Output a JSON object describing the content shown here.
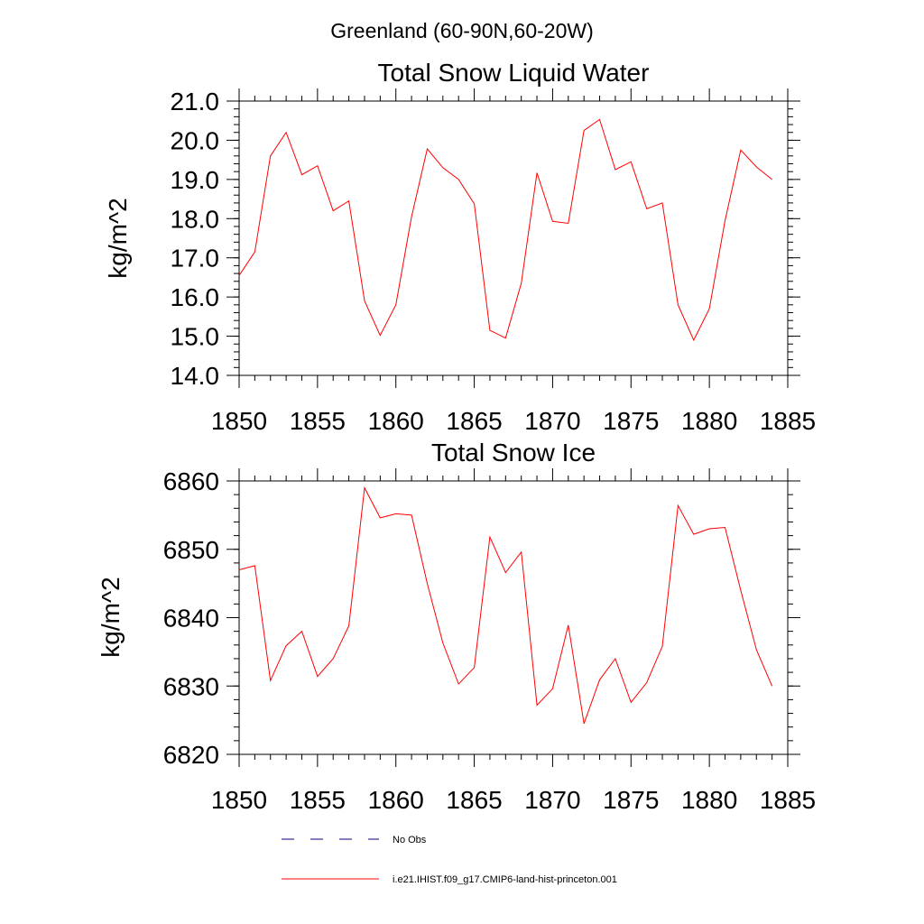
{
  "page_title": "Greenland (60-90N,60-20W)",
  "chart_data": [
    {
      "type": "line",
      "title": "Total Snow Liquid Water",
      "xlabel": "",
      "ylabel": "kg/m^2",
      "xlim": [
        1850,
        1885
      ],
      "ylim": [
        14.0,
        21.0
      ],
      "x_ticks": [
        1850,
        1855,
        1860,
        1865,
        1870,
        1875,
        1880,
        1885
      ],
      "x_tick_labels": [
        "1850",
        "1855",
        "1860",
        "1865",
        "1870",
        "1875",
        "1880",
        "1885"
      ],
      "y_ticks": [
        14.0,
        15.0,
        16.0,
        17.0,
        18.0,
        19.0,
        20.0,
        21.0
      ],
      "y_tick_labels": [
        "14.0",
        "15.0",
        "16.0",
        "17.0",
        "18.0",
        "19.0",
        "20.0",
        "21.0"
      ],
      "x": [
        1850,
        1851,
        1852,
        1853,
        1854,
        1855,
        1856,
        1857,
        1858,
        1859,
        1860,
        1861,
        1862,
        1863,
        1864,
        1865,
        1866,
        1867,
        1868,
        1869,
        1870,
        1871,
        1872,
        1873,
        1874,
        1875,
        1876,
        1877,
        1878,
        1879,
        1880,
        1881,
        1882,
        1883,
        1884
      ],
      "series": [
        {
          "name": "i.e21.IHIST.f09_g17.CMIP6-land-hist-princeton.001",
          "color": "#ff0000",
          "values": [
            16.55,
            17.15,
            19.6,
            20.2,
            19.12,
            19.35,
            18.2,
            18.45,
            15.9,
            15.02,
            15.8,
            18.05,
            19.78,
            19.3,
            19.0,
            18.38,
            15.15,
            14.95,
            16.35,
            19.17,
            17.93,
            17.88,
            20.25,
            20.53,
            19.25,
            19.45,
            18.25,
            18.4,
            15.8,
            14.9,
            15.7,
            17.95,
            19.75,
            19.32,
            19.0
          ]
        }
      ]
    },
    {
      "type": "line",
      "title": "Total Snow Ice",
      "xlabel": "",
      "ylabel": "kg/m^2",
      "xlim": [
        1850,
        1885
      ],
      "ylim": [
        6820,
        6860
      ],
      "x_ticks": [
        1850,
        1855,
        1860,
        1865,
        1870,
        1875,
        1880,
        1885
      ],
      "x_tick_labels": [
        "1850",
        "1855",
        "1860",
        "1865",
        "1870",
        "1875",
        "1880",
        "1885"
      ],
      "y_ticks": [
        6820,
        6830,
        6840,
        6850,
        6860
      ],
      "y_tick_labels": [
        "6820",
        "6830",
        "6840",
        "6850",
        "6860"
      ],
      "x": [
        1850,
        1851,
        1852,
        1853,
        1854,
        1855,
        1856,
        1857,
        1858,
        1859,
        1860,
        1861,
        1862,
        1863,
        1864,
        1865,
        1866,
        1867,
        1868,
        1869,
        1870,
        1871,
        1872,
        1873,
        1874,
        1875,
        1876,
        1877,
        1878,
        1879,
        1880,
        1881,
        1882,
        1883,
        1884
      ],
      "series": [
        {
          "name": "i.e21.IHIST.f09_g17.CMIP6-land-hist-princeton.001",
          "color": "#ff0000",
          "values": [
            6847.0,
            6847.6,
            6830.8,
            6835.9,
            6838.0,
            6831.4,
            6834.0,
            6838.8,
            6859.0,
            6854.6,
            6855.2,
            6855.0,
            6845.0,
            6836.3,
            6830.3,
            6832.7,
            6851.8,
            6846.6,
            6849.6,
            6827.2,
            6829.6,
            6838.9,
            6824.5,
            6830.9,
            6834.0,
            6827.6,
            6830.5,
            6835.8,
            6856.4,
            6852.2,
            6853.0,
            6853.2,
            6844.0,
            6835.3,
            6830.0
          ]
        }
      ]
    }
  ],
  "legend": {
    "items": [
      {
        "label": "No Obs",
        "style": "dashed",
        "color": "#000080"
      },
      {
        "label": "i.e21.IHIST.f09_g17.CMIP6-land-hist-princeton.001",
        "style": "solid",
        "color": "#ff0000"
      }
    ]
  }
}
